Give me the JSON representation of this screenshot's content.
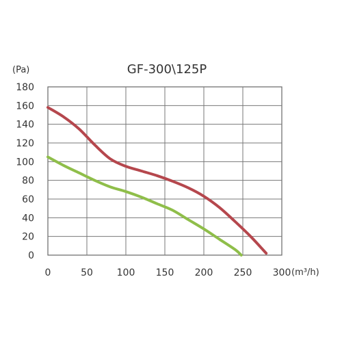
{
  "chart_data": {
    "type": "line",
    "title": "GF-300\\125P",
    "ylabel": "(Pa)",
    "xlabel": "(m³/h)",
    "xlim": [
      0,
      300
    ],
    "ylim": [
      0,
      180
    ],
    "x_ticks": [
      0,
      50,
      100,
      150,
      200,
      250,
      300
    ],
    "y_ticks": [
      0,
      20,
      40,
      60,
      80,
      100,
      120,
      140,
      160,
      180
    ],
    "grid": true,
    "series": [
      {
        "color": "#b5474d",
        "points": [
          [
            0,
            158
          ],
          [
            20,
            148
          ],
          [
            40,
            135
          ],
          [
            60,
            118
          ],
          [
            80,
            103
          ],
          [
            100,
            95
          ],
          [
            120,
            90
          ],
          [
            140,
            85
          ],
          [
            160,
            79
          ],
          [
            180,
            72
          ],
          [
            200,
            63
          ],
          [
            220,
            51
          ],
          [
            240,
            36
          ],
          [
            260,
            20
          ],
          [
            280,
            2
          ]
        ]
      },
      {
        "color": "#8fbe4a",
        "points": [
          [
            0,
            105
          ],
          [
            20,
            96
          ],
          [
            40,
            88
          ],
          [
            60,
            80
          ],
          [
            80,
            73
          ],
          [
            100,
            68
          ],
          [
            120,
            62
          ],
          [
            140,
            55
          ],
          [
            160,
            48
          ],
          [
            180,
            38
          ],
          [
            200,
            28
          ],
          [
            220,
            17
          ],
          [
            240,
            6
          ],
          [
            248,
            0
          ]
        ]
      }
    ]
  }
}
